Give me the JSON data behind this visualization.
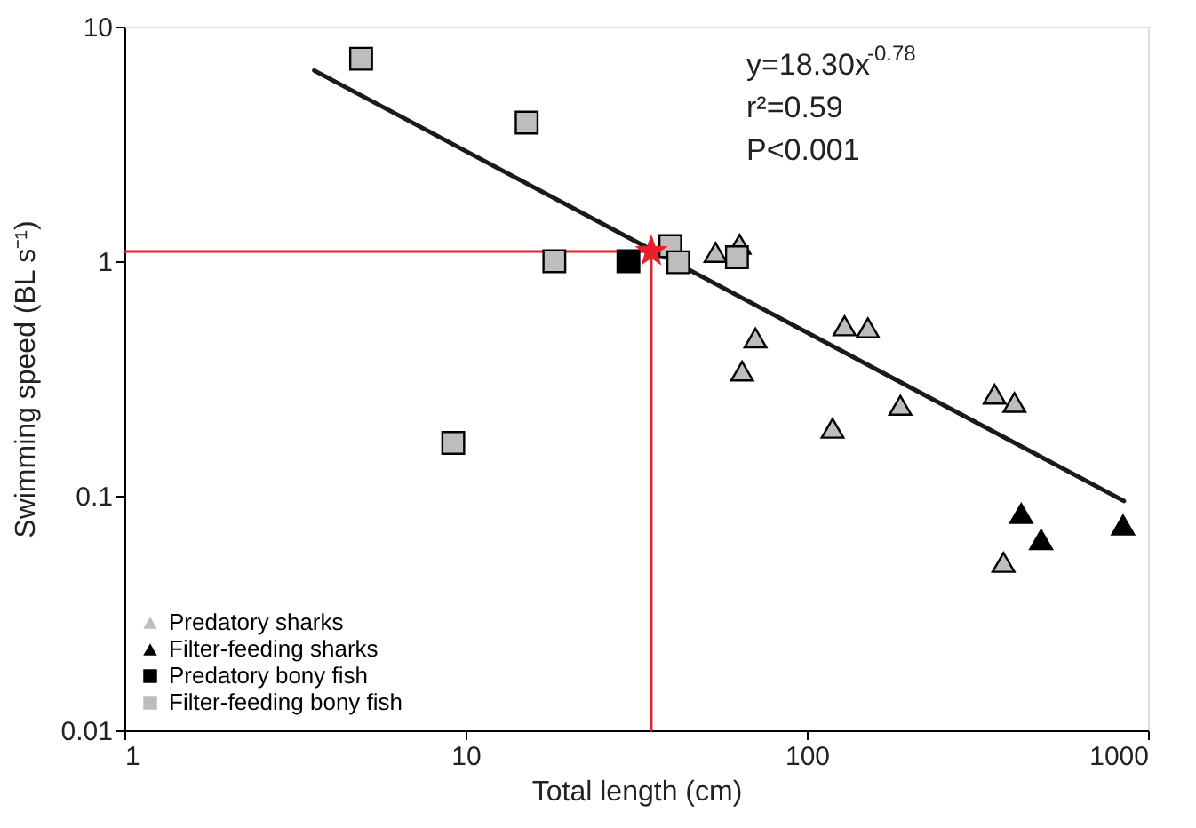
{
  "chart_data": {
    "type": "scatter",
    "xlabel": "Total length (cm)",
    "ylabel": "Swimming speed (BL s⁻¹)",
    "log": "xy",
    "xlim": [
      1,
      1000
    ],
    "xticks": [
      1,
      10,
      100,
      1000
    ],
    "ylim": [
      0.01,
      10
    ],
    "yticks": [
      0.01,
      0.1,
      1,
      10
    ],
    "grid": false,
    "legend": "bottom left",
    "annotations": [
      "y=18.30x$^{-0.78}$",
      "r²=0.59",
      "P<0.001"
    ],
    "series": [
      {
        "type": "line",
        "color": "#e8202a",
        "marker": "none",
        "line_style": "solid",
        "x": [
          1,
          35,
          35
        ],
        "values": [
          1.1,
          1.1,
          0.01
        ]
      },
      {
        "type": "line",
        "color": "#1a1a1a",
        "marker": "none",
        "line_style": "solid",
        "x": [
          3.6,
          850
        ],
        "values": [
          6.5,
          0.095
        ]
      },
      {
        "name": "Predatory sharks",
        "type": "scatter",
        "marker": "triangle",
        "color": "#bdbdbd",
        "x": [
          54,
          63.5,
          70.7,
          64.6,
          129,
          151,
          119,
          188,
          355,
          406,
          377
        ],
        "values": [
          1.09,
          1.18,
          0.47,
          0.34,
          0.53,
          0.52,
          0.194,
          0.243,
          0.271,
          0.25,
          0.052
        ]
      },
      {
        "name": "Filter-feeding sharks",
        "type": "scatter",
        "marker": "triangle",
        "color": "#000000",
        "x": [
          425,
          486,
          845
        ],
        "values": [
          0.084,
          0.065,
          0.075
        ]
      },
      {
        "name": "Predatory bony fish",
        "type": "scatter",
        "marker": "square",
        "color": "#000000",
        "x": [
          30
        ],
        "values": [
          1.0
        ]
      },
      {
        "name": "Filter-feeding bony fish",
        "type": "scatter",
        "marker": "square",
        "color": "#bdbdbd",
        "x": [
          4.94,
          15.1,
          18.2,
          9.2,
          39.8,
          42,
          62.4
        ],
        "values": [
          7.3,
          3.9,
          1.0,
          0.168,
          1.16,
          0.99,
          1.04
        ]
      },
      {
        "type": "scatter",
        "marker": "star",
        "color": "#e8202a",
        "x": [
          35
        ],
        "values": [
          1.1
        ]
      }
    ]
  }
}
